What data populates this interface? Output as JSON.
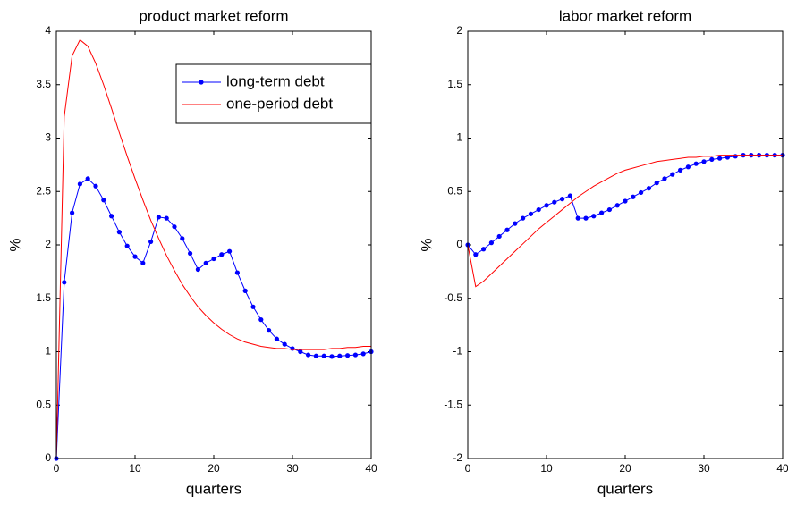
{
  "chart_data": [
    {
      "type": "line",
      "title": "product market reform",
      "xlabel": "quarters",
      "ylabel": "%",
      "x": [
        0,
        1,
        2,
        3,
        4,
        5,
        6,
        7,
        8,
        9,
        10,
        11,
        12,
        13,
        14,
        15,
        16,
        17,
        18,
        19,
        20,
        21,
        22,
        23,
        24,
        25,
        26,
        27,
        28,
        29,
        30,
        31,
        32,
        33,
        34,
        35,
        36,
        37,
        38,
        39,
        40
      ],
      "xlim": [
        0,
        40
      ],
      "xticks": [
        0,
        10,
        20,
        30,
        40
      ],
      "ylim": [
        0,
        4
      ],
      "yticks": [
        0,
        0.5,
        1,
        1.5,
        2,
        2.5,
        3,
        3.5,
        4
      ],
      "legend": "upper right",
      "series": [
        {
          "name": "long-term debt",
          "color": "#0000ff",
          "marker": "o",
          "values": [
            0,
            1.65,
            2.3,
            2.57,
            2.62,
            2.55,
            2.42,
            2.27,
            2.12,
            1.99,
            1.89,
            1.83,
            2.03,
            2.26,
            2.25,
            2.17,
            2.06,
            1.92,
            1.77,
            1.83,
            1.87,
            1.91,
            1.94,
            1.74,
            1.57,
            1.42,
            1.3,
            1.2,
            1.12,
            1.07,
            1.03,
            1.0,
            0.97,
            0.96,
            0.96,
            0.955,
            0.96,
            0.965,
            0.97,
            0.98,
            1.0
          ]
        },
        {
          "name": "one-period debt",
          "color": "#ff0000",
          "values": [
            0,
            3.2,
            3.77,
            3.92,
            3.86,
            3.7,
            3.5,
            3.28,
            3.05,
            2.83,
            2.62,
            2.42,
            2.23,
            2.06,
            1.9,
            1.76,
            1.63,
            1.52,
            1.42,
            1.34,
            1.27,
            1.21,
            1.16,
            1.12,
            1.09,
            1.07,
            1.05,
            1.04,
            1.03,
            1.03,
            1.02,
            1.02,
            1.02,
            1.02,
            1.02,
            1.03,
            1.03,
            1.04,
            1.04,
            1.05,
            1.05
          ]
        }
      ]
    },
    {
      "type": "line",
      "title": "labor market reform",
      "xlabel": "quarters",
      "ylabel": "%",
      "x": [
        0,
        1,
        2,
        3,
        4,
        5,
        6,
        7,
        8,
        9,
        10,
        11,
        12,
        13,
        14,
        15,
        16,
        17,
        18,
        19,
        20,
        21,
        22,
        23,
        24,
        25,
        26,
        27,
        28,
        29,
        30,
        31,
        32,
        33,
        34,
        35,
        36,
        37,
        38,
        39,
        40
      ],
      "xlim": [
        0,
        40
      ],
      "xticks": [
        0,
        10,
        20,
        30,
        40
      ],
      "ylim": [
        -2,
        2
      ],
      "yticks": [
        -2,
        -1.5,
        -1,
        -0.5,
        0,
        0.5,
        1,
        1.5,
        2
      ],
      "series": [
        {
          "color": "#0000ff",
          "marker": "o",
          "values": [
            0,
            -0.09,
            -0.04,
            0.02,
            0.08,
            0.14,
            0.2,
            0.25,
            0.29,
            0.33,
            0.37,
            0.4,
            0.43,
            0.46,
            0.25,
            0.25,
            0.27,
            0.3,
            0.33,
            0.37,
            0.41,
            0.45,
            0.49,
            0.53,
            0.58,
            0.62,
            0.66,
            0.7,
            0.73,
            0.76,
            0.78,
            0.8,
            0.81,
            0.82,
            0.83,
            0.84,
            0.84,
            0.84,
            0.84,
            0.84,
            0.84
          ]
        },
        {
          "color": "#ff0000",
          "values": [
            0,
            -0.39,
            -0.34,
            -0.27,
            -0.2,
            -0.13,
            -0.06,
            0.01,
            0.08,
            0.15,
            0.21,
            0.27,
            0.33,
            0.39,
            0.45,
            0.5,
            0.55,
            0.59,
            0.63,
            0.67,
            0.7,
            0.72,
            0.74,
            0.76,
            0.78,
            0.79,
            0.8,
            0.81,
            0.82,
            0.82,
            0.83,
            0.83,
            0.84,
            0.84,
            0.84,
            0.84,
            0.84,
            0.84,
            0.84,
            0.84,
            0.84
          ]
        }
      ]
    }
  ]
}
